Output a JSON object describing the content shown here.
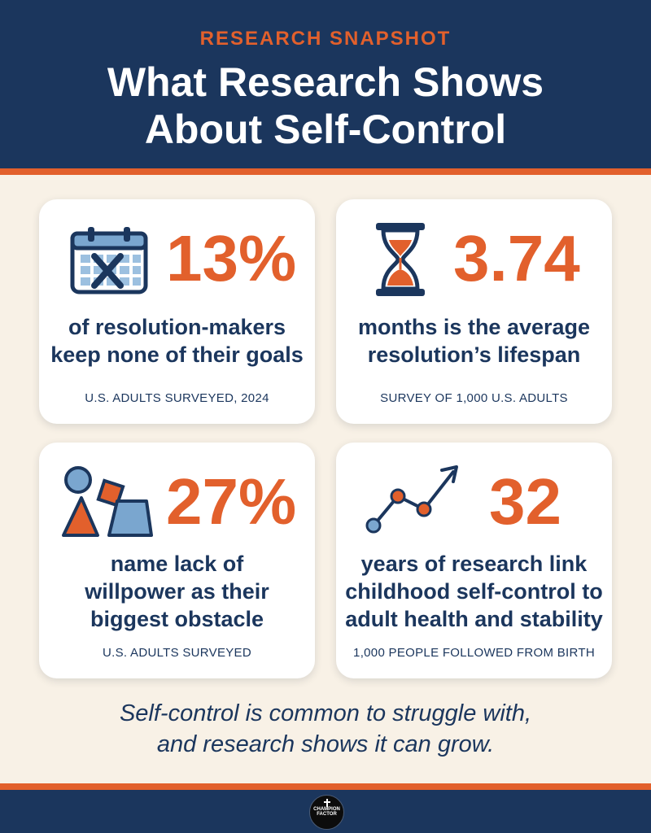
{
  "header": {
    "eyebrow": "RESEARCH SNAPSHOT",
    "title_line1": "What Research Shows",
    "title_line2": "About Self-Control"
  },
  "colors": {
    "navy": "#1b365d",
    "orange": "#e2602c",
    "light_blue": "#7aa6cf",
    "cream": "#f8f1e6"
  },
  "cards": [
    {
      "icon": "calendar-x-icon",
      "stat": "13%",
      "desc_line1": "of resolution-makers",
      "desc_line2": "keep none of their goals",
      "source": "U.S. ADULTS SURVEYED, 2024"
    },
    {
      "icon": "hourglass-icon",
      "stat": "3.74",
      "desc_line1": "months is the average",
      "desc_line2": "resolution’s lifespan",
      "source": "SURVEY OF 1,000 U.S. ADULTS"
    },
    {
      "icon": "shapes-icon",
      "stat": "27%",
      "desc_line1": "name lack of",
      "desc_line2": "willpower as their",
      "desc_line3": "biggest obstacle",
      "source": "U.S. ADULTS SURVEYED"
    },
    {
      "icon": "trend-up-icon",
      "stat": "32",
      "desc_line1": "years of research link",
      "desc_line2": "childhood self-control to",
      "desc_line3": "adult health and stability",
      "source": "1,000 PEOPLE FOLLOWED FROM BIRTH"
    }
  ],
  "tagline": {
    "line1": "Self-control is common to struggle with,",
    "line2": "and research shows it can grow."
  },
  "footer": {
    "logo_text": "CHAMPION FACTOR"
  }
}
